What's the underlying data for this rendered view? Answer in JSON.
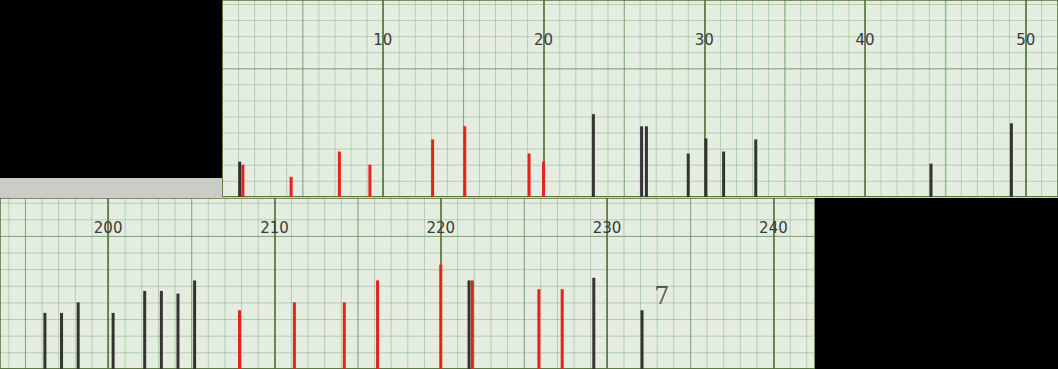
{
  "chart_data": [
    {
      "type": "bar",
      "xlim": [
        0,
        52
      ],
      "xticks": [
        10,
        20,
        30,
        40,
        50
      ],
      "ylim": [
        0,
        19.5
      ],
      "tick_labels": "x",
      "grid": true,
      "series": [
        {
          "color": "#e3231c",
          "x": [
            1.3,
            4.3,
            7.3,
            9.2,
            13.1,
            15.1,
            19.1,
            20.0
          ],
          "values": [
            3.2,
            2.0,
            4.5,
            3.2,
            5.7,
            7.0,
            4.3,
            3.5
          ]
        },
        {
          "color": "#333333",
          "x": [
            1.1,
            23.1,
            26.1,
            26.4,
            29.0,
            30.1,
            31.2,
            33.2,
            44.1,
            49.1
          ],
          "values": [
            3.5,
            8.2,
            7.0,
            7.0,
            4.3,
            5.8,
            4.5,
            5.7,
            3.3,
            7.3
          ]
        }
      ]
    },
    {
      "type": "bar",
      "xlim": [
        193.5,
        242.5
      ],
      "xticks": [
        200,
        210,
        220,
        230,
        240
      ],
      "ylim": [
        0,
        19.5
      ],
      "tick_labels": "x",
      "grid": true,
      "series": [
        {
          "color": "#333333",
          "x": [
            196.2,
            197.2,
            198.2,
            200.3,
            202.2,
            203.2,
            204.2,
            205.2,
            221.7,
            229.2,
            232.1
          ],
          "values": [
            6.4,
            6.4,
            7.6,
            6.4,
            8.9,
            8.9,
            8.6,
            10.1,
            10.1,
            10.4,
            6.7
          ]
        },
        {
          "color": "#e3231c",
          "x": [
            207.9,
            211.2,
            214.2,
            216.2,
            220.0,
            221.9,
            225.9,
            227.3
          ],
          "values": [
            6.7,
            7.6,
            7.6,
            10.1,
            11.9,
            10.1,
            9.1,
            9.1
          ]
        }
      ],
      "annotations": [
        {
          "text": "7",
          "x": 233.3,
          "y": 8.3
        }
      ]
    }
  ]
}
